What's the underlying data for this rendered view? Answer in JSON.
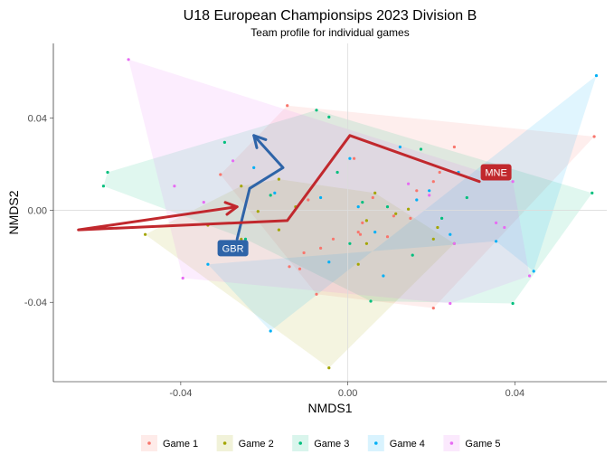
{
  "chart_data": {
    "type": "scatter",
    "title": "U18 European Championsips 2023 Division B",
    "subtitle": "Team profile for individual games",
    "xlabel": "NMDS1",
    "ylabel": "NMDS2",
    "xlim": [
      -0.0705,
      0.062
    ],
    "ylim": [
      -0.0745,
      0.0725
    ],
    "grid": "origin-lines",
    "legend_position": "bottom",
    "x_ticks": [
      {
        "value": -0.04,
        "label": "-0.04"
      },
      {
        "value": 0.0,
        "label": "0.00"
      },
      {
        "value": 0.04,
        "label": "0.04"
      }
    ],
    "y_ticks": [
      {
        "value": 0.04,
        "label": "0.04"
      },
      {
        "value": 0.0,
        "label": "0.00"
      },
      {
        "value": -0.04,
        "label": "-0.04"
      }
    ],
    "series": [
      {
        "name": "Game 1",
        "color": "#F8766D",
        "hull": [
          [
            -0.0305,
            0.0155
          ],
          [
            -0.0145,
            0.0455
          ],
          [
            0.059,
            0.032
          ],
          [
            0.0205,
            -0.0425
          ],
          [
            -0.0075,
            -0.0365
          ]
        ],
        "points": [
          [
            -0.0305,
            0.0155
          ],
          [
            -0.0145,
            0.0455
          ],
          [
            0.059,
            0.032
          ],
          [
            0.0205,
            -0.0425
          ],
          [
            -0.0075,
            -0.0365
          ],
          [
            -0.014,
            -0.0245
          ],
          [
            -0.0065,
            -0.0165
          ],
          [
            0.0015,
            0.0225
          ],
          [
            0.006,
            0.0055
          ],
          [
            0.011,
            -0.0025
          ],
          [
            0.0255,
            0.0275
          ],
          [
            0.0205,
            0.0125
          ],
          [
            0.003,
            -0.0105
          ],
          [
            -0.0115,
            -0.0255
          ],
          [
            -0.0035,
            -0.0125
          ],
          [
            0.0095,
            -0.0115
          ],
          [
            0.015,
            -0.0035
          ],
          [
            0.022,
            0.0165
          ],
          [
            0.0025,
            -0.0095
          ],
          [
            -0.0105,
            -0.0185
          ],
          [
            0.0035,
            -0.0055
          ],
          [
            -0.0095,
            0.0045
          ],
          [
            0.0165,
            0.0085
          ]
        ]
      },
      {
        "name": "Game 2",
        "color": "#A3A500",
        "hull": [
          [
            -0.0485,
            -0.0105
          ],
          [
            -0.0255,
            0.0105
          ],
          [
            -0.0165,
            0.0135
          ],
          [
            0.0065,
            0.0075
          ],
          [
            0.0255,
            -0.0145
          ],
          [
            -0.0045,
            -0.0685
          ]
        ],
        "points": [
          [
            -0.0485,
            -0.0105
          ],
          [
            -0.0255,
            0.0105
          ],
          [
            -0.0165,
            0.0135
          ],
          [
            0.0065,
            0.0075
          ],
          [
            0.0255,
            -0.0145
          ],
          [
            -0.0045,
            -0.0685
          ],
          [
            -0.0335,
            -0.0065
          ],
          [
            -0.0215,
            -0.0005
          ],
          [
            -0.0125,
            0.0015
          ],
          [
            0.0045,
            -0.0045
          ],
          [
            0.0145,
            0.0005
          ],
          [
            0.0205,
            -0.0125
          ],
          [
            -0.0165,
            -0.0085
          ],
          [
            0.0045,
            -0.0145
          ],
          [
            0.0025,
            -0.0235
          ],
          [
            -0.0255,
            -0.0125
          ],
          [
            0.0115,
            -0.0015
          ],
          [
            0.0215,
            -0.0075
          ]
        ]
      },
      {
        "name": "Game 3",
        "color": "#00BF7D",
        "hull": [
          [
            -0.0585,
            0.0105
          ],
          [
            -0.0575,
            0.0165
          ],
          [
            -0.0075,
            0.0435
          ],
          [
            0.0585,
            0.0075
          ],
          [
            0.0395,
            -0.0405
          ],
          [
            0.0055,
            -0.0395
          ],
          [
            -0.0245,
            -0.0125
          ]
        ],
        "points": [
          [
            -0.0585,
            0.0105
          ],
          [
            -0.0575,
            0.0165
          ],
          [
            -0.0075,
            0.0435
          ],
          [
            0.0585,
            0.0075
          ],
          [
            0.0395,
            -0.0405
          ],
          [
            0.0055,
            -0.0395
          ],
          [
            -0.0245,
            -0.0125
          ],
          [
            -0.0295,
            0.0295
          ],
          [
            -0.0185,
            0.0065
          ],
          [
            0.0005,
            -0.0145
          ],
          [
            0.0175,
            0.0265
          ],
          [
            0.0285,
            0.0055
          ],
          [
            -0.0045,
            0.0405
          ],
          [
            0.0035,
            0.0035
          ],
          [
            0.0155,
            -0.0195
          ],
          [
            -0.0025,
            0.0165
          ],
          [
            0.0095,
            0.0015
          ],
          [
            0.0225,
            -0.0035
          ]
        ]
      },
      {
        "name": "Game 4",
        "color": "#00B0F6",
        "hull": [
          [
            -0.0335,
            -0.0235
          ],
          [
            -0.0185,
            -0.0525
          ],
          [
            0.0595,
            0.0585
          ],
          [
            0.0445,
            -0.0265
          ],
          [
            0.0355,
            -0.0135
          ]
        ],
        "points": [
          [
            -0.0335,
            -0.0235
          ],
          [
            -0.0185,
            -0.0525
          ],
          [
            0.0595,
            0.0585
          ],
          [
            0.0445,
            -0.0265
          ],
          [
            0.0355,
            -0.0135
          ],
          [
            -0.0225,
            0.0185
          ],
          [
            -0.0175,
            0.0075
          ],
          [
            -0.0065,
            0.0055
          ],
          [
            0.0005,
            0.0225
          ],
          [
            0.0125,
            0.0275
          ],
          [
            0.0165,
            0.0045
          ],
          [
            0.0265,
            0.0165
          ],
          [
            0.0065,
            -0.0095
          ],
          [
            -0.0045,
            -0.0225
          ],
          [
            0.0195,
            0.0085
          ],
          [
            0.0025,
            0.0015
          ],
          [
            0.0085,
            -0.0285
          ],
          [
            0.0245,
            -0.0105
          ]
        ]
      },
      {
        "name": "Game 5",
        "color": "#E76BF3",
        "hull": [
          [
            -0.0525,
            0.0655
          ],
          [
            0.0395,
            0.0125
          ],
          [
            0.0435,
            -0.0285
          ],
          [
            0.0245,
            -0.0405
          ],
          [
            -0.0395,
            -0.0295
          ]
        ],
        "points": [
          [
            -0.0525,
            0.0655
          ],
          [
            0.0395,
            0.0125
          ],
          [
            0.0435,
            -0.0285
          ],
          [
            0.0245,
            -0.0405
          ],
          [
            -0.0395,
            -0.0295
          ],
          [
            -0.0415,
            0.0105
          ],
          [
            -0.0275,
            0.0215
          ],
          [
            -0.0345,
            0.0035
          ],
          [
            0.0355,
            -0.0055
          ],
          [
            0.0375,
            -0.0075
          ],
          [
            0.0255,
            -0.0145
          ],
          [
            0.0145,
            0.0115
          ],
          [
            0.0195,
            0.0065
          ]
        ]
      }
    ],
    "team_paths": [
      {
        "label": "GBR",
        "color": "#2E64A8",
        "label_at": [
          -0.0275,
          -0.0165
        ],
        "path": [
          [
            -0.0265,
            -0.0125
          ],
          [
            -0.0235,
            0.0095
          ],
          [
            -0.0155,
            0.0185
          ],
          [
            -0.0225,
            0.0325
          ]
        ]
      },
      {
        "label": "MNE",
        "color": "#C1282D",
        "label_at": [
          0.0355,
          0.0165
        ],
        "path": [
          [
            0.0315,
            0.0125
          ],
          [
            0.0005,
            0.0325
          ],
          [
            -0.0145,
            -0.0045
          ],
          [
            -0.0645,
            -0.0085
          ],
          [
            -0.0265,
            0.0015
          ]
        ]
      }
    ]
  }
}
